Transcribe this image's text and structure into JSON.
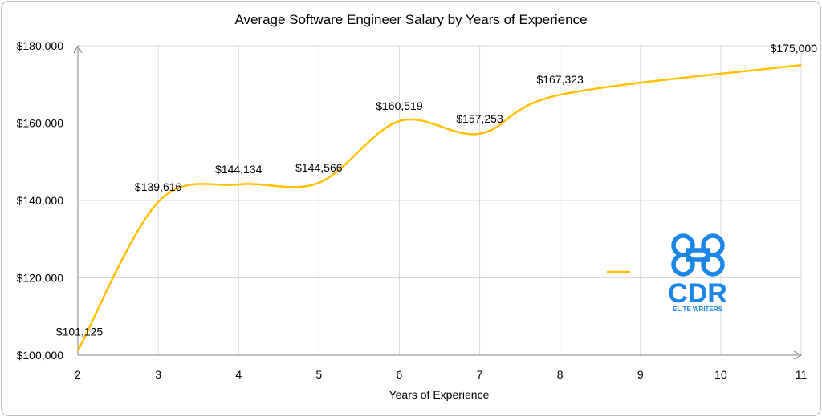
{
  "chart_data": {
    "type": "line",
    "title": "Average Software Engineer Salary by Years of Experience",
    "xlabel": "Years of Experience",
    "ylabel": "",
    "x": [
      2,
      3,
      4,
      5,
      6,
      7,
      8,
      9,
      10,
      11
    ],
    "xlim": [
      2,
      11
    ],
    "ylim": [
      100000,
      180000
    ],
    "yticks": [
      100000,
      120000,
      140000,
      160000,
      180000
    ],
    "ytick_labels": [
      "$100,000",
      "$120,000",
      "$140,000",
      "$160,000",
      "$180,000"
    ],
    "xtick_labels": [
      "2",
      "3",
      "4",
      "5",
      "6",
      "7",
      "8",
      "9",
      "10",
      "11"
    ],
    "grid": true,
    "legend": "right",
    "series": [
      {
        "name": "",
        "color": "#ffc000",
        "smooth": true,
        "points": [
          {
            "x": 2,
            "y": 101125,
            "label": "$101,125"
          },
          {
            "x": 3,
            "y": 139616,
            "label": "$139,616"
          },
          {
            "x": 4,
            "y": 144134,
            "label": "$144,134"
          },
          {
            "x": 5,
            "y": 144566,
            "label": "$144,566"
          },
          {
            "x": 6,
            "y": 160519,
            "label": "$160,519"
          },
          {
            "x": 7,
            "y": 157253,
            "label": "$157,253"
          },
          {
            "x": 8,
            "y": 167323,
            "label": "$167,323"
          },
          {
            "x": 11,
            "y": 175000,
            "label": "$175,000"
          }
        ]
      }
    ]
  },
  "watermark": {
    "text": "CDR",
    "subtext": "ELITE WRITERS",
    "color": "#1c86e8",
    "icon": "command-key-icon"
  }
}
